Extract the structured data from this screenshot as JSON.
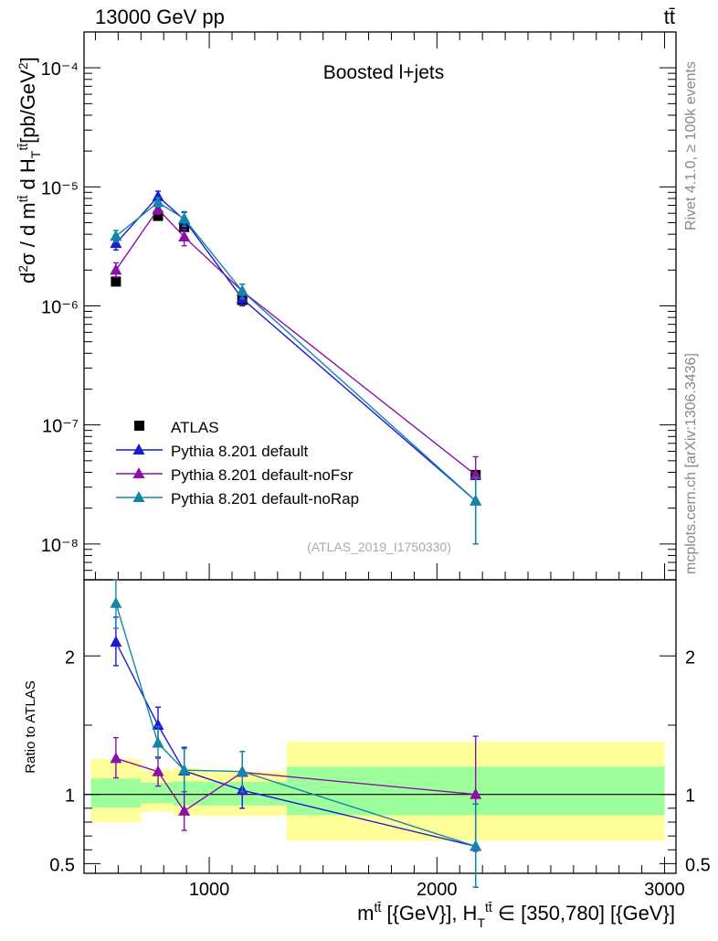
{
  "header": {
    "left": "13000 GeV pp",
    "right": "tt̄"
  },
  "side_labels": {
    "rivet": "Rivet 4.1.0, ≥ 100k events",
    "mcplots": "mcplots.cern.ch [arXiv:1306.3436]"
  },
  "colors": {
    "atlas": "#000000",
    "default": "#1a1ad6",
    "nofsr": "#8b10a8",
    "norap": "#1286a8",
    "band_inner": "#9cff9c",
    "band_outer": "#ffff99"
  },
  "chart_data": [
    {
      "type": "line",
      "title": "Boosted l+jets",
      "analysis_id": "(ATLAS_2019_I1750330)",
      "ylabel": "d²σ / d m^tt̄ d H_T^tt̄ [pb/GeV²]",
      "yscale": "log",
      "ylim": [
        5e-09,
        0.0002
      ],
      "xlim": [
        450,
        3050
      ],
      "yticks": [
        {
          "value": 1e-08,
          "label": "10⁻⁸"
        },
        {
          "value": 1e-07,
          "label": "10⁻⁷"
        },
        {
          "value": 1e-06,
          "label": "10⁻⁶"
        },
        {
          "value": 1e-05,
          "label": "10⁻⁵"
        },
        {
          "value": 0.0001,
          "label": "10⁻⁴"
        }
      ],
      "legend": [
        "ATLAS",
        "Pythia 8.201 default",
        "Pythia 8.201 default-noFsr",
        "Pythia 8.201 default-noRap"
      ],
      "series": [
        {
          "name": "ATLAS",
          "x": [
            590,
            775,
            890,
            1145,
            2170
          ],
          "y": [
            1.6e-06,
            5.7e-06,
            4.6e-06,
            1.12e-06,
            3.8e-08
          ],
          "err_lo": [
            1.5e-06,
            5.4e-06,
            4.3e-06,
            1.04e-06,
            3.5e-08
          ],
          "err_hi": [
            1.7e-06,
            6e-06,
            4.9e-06,
            1.2e-06,
            4.1e-08
          ]
        },
        {
          "name": "Pythia 8.201 default",
          "x": [
            590,
            775,
            890,
            1145,
            2170
          ],
          "y": [
            3.35e-06,
            8.3e-06,
            5.3e-06,
            1.15e-06,
            2.3e-08
          ],
          "err_lo": [
            2.95e-06,
            7.5e-06,
            4.6e-06,
            1e-06,
            1e-08
          ],
          "err_hi": [
            3.8e-06,
            9.2e-06,
            6.1e-06,
            1.32e-06,
            3.6e-08
          ]
        },
        {
          "name": "Pythia 8.201 default-noFsr",
          "x": [
            590,
            775,
            890,
            1145,
            2170
          ],
          "y": [
            2e-06,
            6.5e-06,
            3.8e-06,
            1.33e-06,
            3.8e-08
          ],
          "err_lo": [
            1.75e-06,
            5.9e-06,
            3.2e-06,
            1.15e-06,
            2.2e-08
          ],
          "err_hi": [
            2.3e-06,
            7.2e-06,
            4.4e-06,
            1.52e-06,
            5.4e-08
          ]
        },
        {
          "name": "Pythia 8.201 default-noRap",
          "x": [
            590,
            775,
            890,
            1145,
            2170
          ],
          "y": [
            3.85e-06,
            7.4e-06,
            5.4e-06,
            1.33e-06,
            2.3e-08
          ],
          "err_lo": [
            3.45e-06,
            6.8e-06,
            4.7e-06,
            1.15e-06,
            1e-08
          ],
          "err_hi": [
            4.3e-06,
            8.1e-06,
            6.2e-06,
            1.52e-06,
            3.6e-08
          ]
        }
      ]
    },
    {
      "type": "line",
      "ylabel": "Ratio to ATLAS",
      "xlabel": "m^tt̄ [{GeV}], H_T^tt̄ ∈ [350,780] [{GeV}]",
      "xlim": [
        450,
        3050
      ],
      "ylim": [
        0.43,
        2.55
      ],
      "yticks": [
        {
          "value": 0.5,
          "label": "0.5"
        },
        {
          "value": 1,
          "label": "1"
        },
        {
          "value": 2,
          "label": "2"
        }
      ],
      "xticks": [
        {
          "value": 1000,
          "label": "1000"
        },
        {
          "value": 2000,
          "label": "2000"
        },
        {
          "value": 3000,
          "label": "3000"
        }
      ],
      "bands": [
        {
          "x0": 480,
          "x1": 700,
          "inner": [
            0.905,
            1.115
          ],
          "outer": [
            0.8,
            1.255
          ]
        },
        {
          "x0": 700,
          "x1": 840,
          "inner": [
            0.935,
            1.085
          ],
          "outer": [
            0.875,
            1.175
          ]
        },
        {
          "x0": 840,
          "x1": 960,
          "inner": [
            0.92,
            1.095
          ],
          "outer": [
            0.845,
            1.19
          ]
        },
        {
          "x0": 960,
          "x1": 1340,
          "inner": [
            0.92,
            1.09
          ],
          "outer": [
            0.845,
            1.165
          ]
        },
        {
          "x0": 1340,
          "x1": 3000,
          "inner": [
            0.85,
            1.2
          ],
          "outer": [
            0.665,
            1.38
          ]
        }
      ],
      "series": [
        {
          "name": "Pythia 8.201 default",
          "x": [
            590,
            775,
            890,
            1145,
            2170
          ],
          "y": [
            2.1,
            1.5,
            1.17,
            1.03,
            0.625
          ],
          "err_lo": [
            1.93,
            1.38,
            1.0,
            0.9,
            0.33
          ],
          "err_hi": [
            2.28,
            1.63,
            1.34,
            1.17,
            0.93
          ]
        },
        {
          "name": "Pythia 8.201 default-noFsr",
          "x": [
            590,
            775,
            890,
            1145,
            2170
          ],
          "y": [
            1.26,
            1.165,
            0.88,
            1.16,
            1.0
          ],
          "err_lo": [
            1.12,
            1.06,
            0.74,
            1.01,
            0.59
          ],
          "err_hi": [
            1.41,
            1.27,
            1.02,
            1.31,
            1.42
          ]
        },
        {
          "name": "Pythia 8.201 default-noRap",
          "x": [
            590,
            775,
            890,
            1145,
            2170
          ],
          "y": [
            2.38,
            1.37,
            1.175,
            1.165,
            0.625
          ],
          "err_lo": [
            2.2,
            1.26,
            1.02,
            1.02,
            0.33
          ],
          "err_hi": [
            2.56,
            1.49,
            1.33,
            1.31,
            0.93
          ]
        }
      ]
    }
  ]
}
